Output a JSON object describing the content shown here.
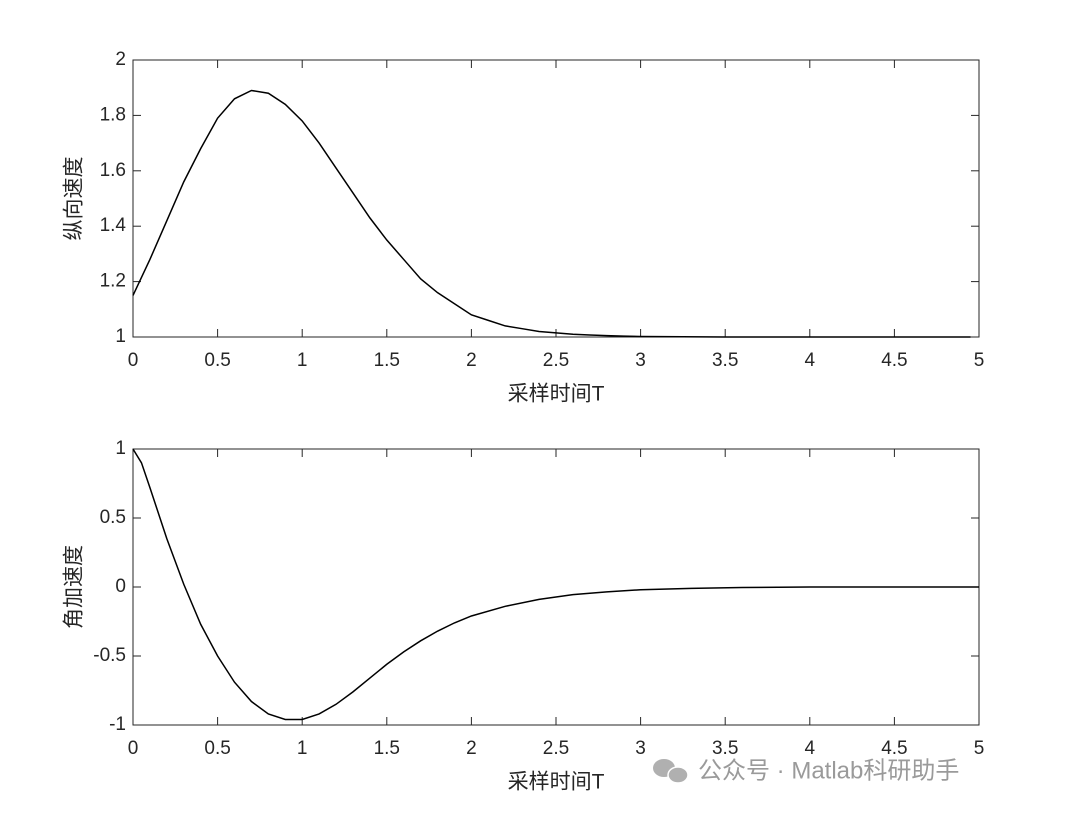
{
  "chart_data": [
    {
      "type": "line",
      "xlabel": "采样时间T",
      "ylabel": "纵向速度",
      "x": [
        0,
        0.1,
        0.2,
        0.3,
        0.4,
        0.5,
        0.6,
        0.7,
        0.8,
        0.9,
        1.0,
        1.1,
        1.2,
        1.3,
        1.4,
        1.5,
        1.6,
        1.7,
        1.8,
        1.9,
        2.0,
        2.1,
        2.2,
        2.3,
        2.4,
        2.5,
        2.6,
        2.7,
        2.8,
        2.9,
        3.0,
        3.5,
        4.0,
        4.5,
        4.95
      ],
      "series": [
        {
          "color": "#000000",
          "values": [
            1.15,
            1.28,
            1.42,
            1.56,
            1.68,
            1.79,
            1.86,
            1.89,
            1.88,
            1.84,
            1.78,
            1.7,
            1.61,
            1.52,
            1.43,
            1.35,
            1.28,
            1.21,
            1.16,
            1.12,
            1.08,
            1.06,
            1.04,
            1.03,
            1.02,
            1.015,
            1.01,
            1.007,
            1.005,
            1.003,
            1.002,
            1.0,
            1.0,
            1.0,
            1.0
          ]
        }
      ],
      "xlim": [
        0,
        5
      ],
      "ylim": [
        1,
        2
      ],
      "xticks": [
        0,
        0.5,
        1,
        1.5,
        2,
        2.5,
        3,
        3.5,
        4,
        4.5,
        5
      ],
      "yticks": [
        1,
        1.2,
        1.4,
        1.6,
        1.8,
        2
      ]
    },
    {
      "type": "line",
      "xlabel": "采样时间T",
      "ylabel": "角加速度",
      "x": [
        0,
        0.05,
        0.1,
        0.2,
        0.3,
        0.4,
        0.5,
        0.6,
        0.7,
        0.8,
        0.9,
        1.0,
        1.1,
        1.2,
        1.3,
        1.4,
        1.5,
        1.6,
        1.7,
        1.8,
        1.9,
        2.0,
        2.2,
        2.4,
        2.6,
        2.8,
        3.0,
        3.3,
        3.6,
        4.0,
        4.5,
        5.0
      ],
      "series": [
        {
          "color": "#000000",
          "values": [
            1,
            0.9,
            0.72,
            0.35,
            0.02,
            -0.27,
            -0.5,
            -0.69,
            -0.83,
            -0.92,
            -0.96,
            -0.96,
            -0.92,
            -0.85,
            -0.76,
            -0.66,
            -0.56,
            -0.47,
            -0.39,
            -0.32,
            -0.26,
            -0.21,
            -0.14,
            -0.09,
            -0.055,
            -0.035,
            -0.02,
            -0.01,
            -0.004,
            0,
            0,
            0
          ]
        }
      ],
      "xlim": [
        0,
        5
      ],
      "ylim": [
        -1,
        1
      ],
      "xticks": [
        0,
        0.5,
        1,
        1.5,
        2,
        2.5,
        3,
        3.5,
        4,
        4.5,
        5
      ],
      "yticks": [
        -1,
        -0.5,
        0,
        0.5,
        1
      ]
    }
  ],
  "watermark": "公众号 · Matlab科研助手"
}
